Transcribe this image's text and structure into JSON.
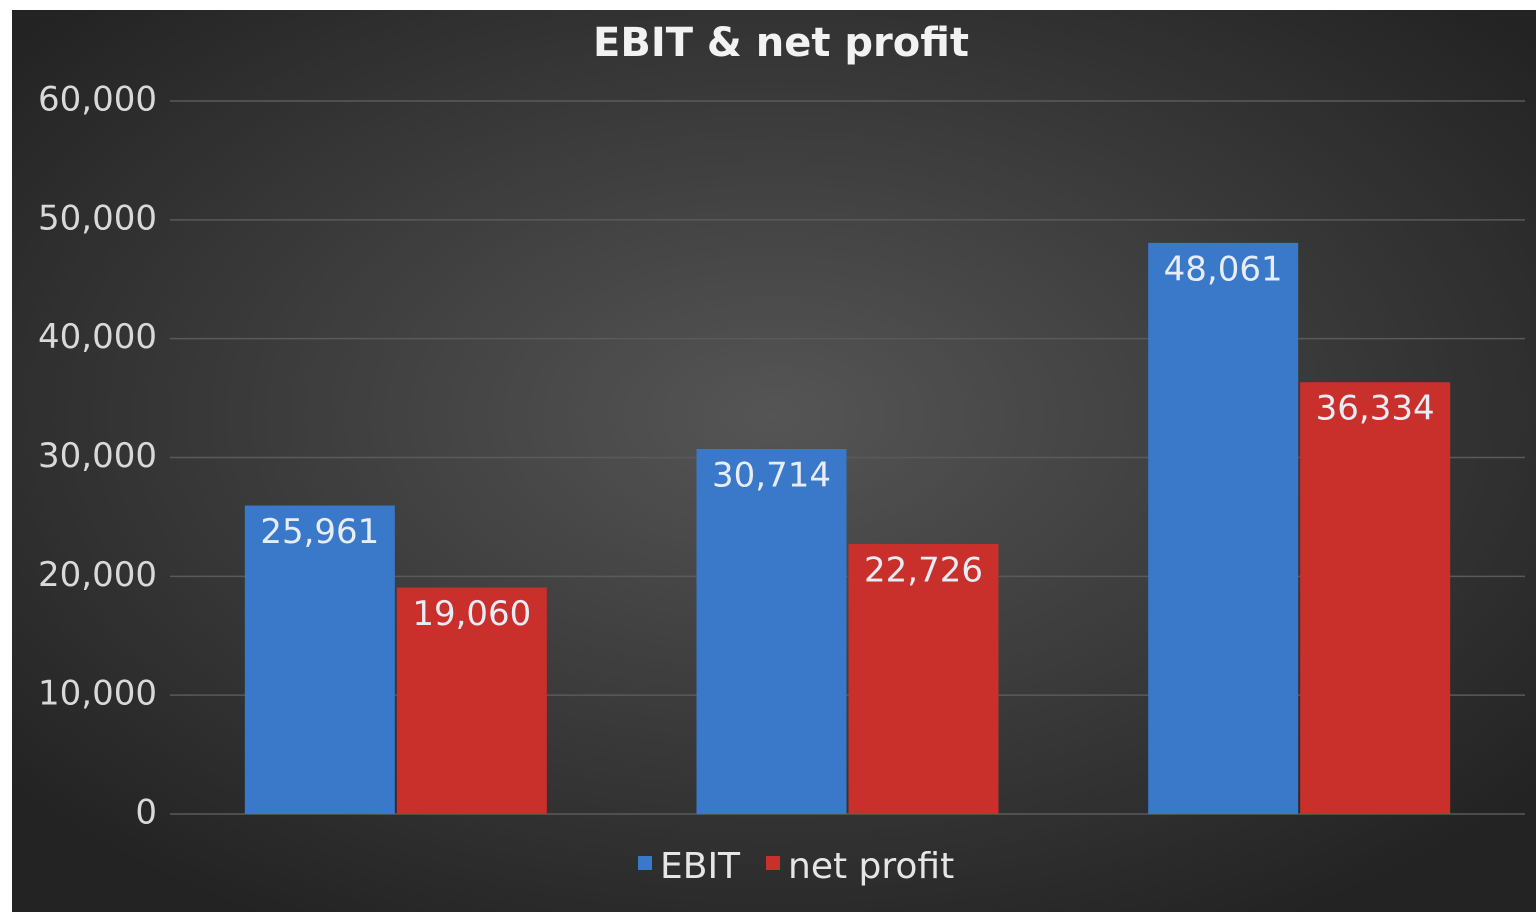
{
  "chart_data": {
    "type": "bar",
    "title": "EBIT & net profit",
    "categories": [
      null,
      null,
      null
    ],
    "series": [
      {
        "name": "EBIT",
        "color": "#3a78c9",
        "values": [
          25961,
          30714,
          48061
        ],
        "value_labels": [
          "25,961",
          "30,714",
          "48,061"
        ]
      },
      {
        "name": "net profit",
        "color": "#c9302c",
        "values": [
          19060,
          22726,
          36334
        ],
        "value_labels": [
          "19,060",
          "22,726",
          "36,334"
        ]
      }
    ],
    "ylim": [
      0,
      60000
    ],
    "yticks": [
      0,
      {
        "value": 10000,
        "label": "10,000"
      },
      {
        "value": 20000,
        "label": "20,000"
      },
      {
        "value": 30000,
        "label": "30,000"
      },
      {
        "value": 40000,
        "label": "40,000"
      },
      {
        "value": 50000,
        "label": "50,000"
      },
      {
        "value": 60000,
        "label": "60,000"
      }
    ],
    "grid": true,
    "legend": "bottom"
  }
}
